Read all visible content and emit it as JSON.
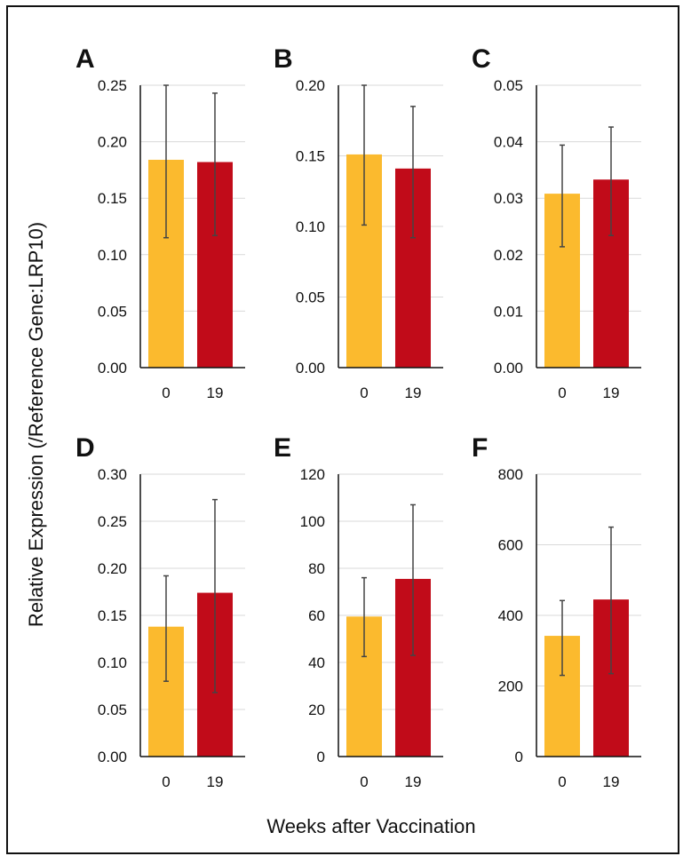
{
  "figure": {
    "ylabel": "Relative Expression (/Reference Gene:LRP10)",
    "xlabel": "Weeks after Vaccination",
    "colors": {
      "week0": "#FBBA2E",
      "week19": "#C10B19",
      "grid": "#D9D9D9",
      "axis": "#111111",
      "error": "#444444"
    }
  },
  "chart_data": [
    {
      "panel": "A",
      "type": "bar",
      "categories": [
        "0",
        "19"
      ],
      "values": [
        0.184,
        0.182
      ],
      "error_low": [
        0.115,
        0.117
      ],
      "error_high": [
        0.25,
        0.243
      ],
      "ylim": [
        0,
        0.25
      ],
      "yticks": [
        "0.00",
        "0.05",
        "0.10",
        "0.15",
        "0.20",
        "0.25"
      ],
      "grid": true
    },
    {
      "panel": "B",
      "type": "bar",
      "categories": [
        "0",
        "19"
      ],
      "values": [
        0.151,
        0.141
      ],
      "error_low": [
        0.101,
        0.092
      ],
      "error_high": [
        0.2,
        0.185
      ],
      "ylim": [
        0,
        0.2
      ],
      "yticks": [
        "0.00",
        "0.05",
        "0.10",
        "0.15",
        "0.20"
      ],
      "grid": true
    },
    {
      "panel": "C",
      "type": "bar",
      "categories": [
        "0",
        "19"
      ],
      "values": [
        0.0308,
        0.0333
      ],
      "error_low": [
        0.0214,
        0.0234
      ],
      "error_high": [
        0.0394,
        0.0426
      ],
      "ylim": [
        0,
        0.05
      ],
      "yticks": [
        "0.00",
        "0.01",
        "0.02",
        "0.03",
        "0.04",
        "0.05"
      ],
      "grid": true
    },
    {
      "panel": "D",
      "type": "bar",
      "categories": [
        "0",
        "19"
      ],
      "values": [
        0.138,
        0.174
      ],
      "error_low": [
        0.08,
        0.068
      ],
      "error_high": [
        0.192,
        0.273
      ],
      "ylim": [
        0,
        0.3
      ],
      "yticks": [
        "0.00",
        "0.05",
        "0.10",
        "0.15",
        "0.20",
        "0.25",
        "0.30"
      ],
      "grid": true
    },
    {
      "panel": "E",
      "type": "bar",
      "categories": [
        "0",
        "19"
      ],
      "values": [
        59.5,
        75.5
      ],
      "error_low": [
        42.5,
        43.0
      ],
      "error_high": [
        76.0,
        107.0
      ],
      "ylim": [
        0,
        120
      ],
      "yticks": [
        "0",
        "20",
        "40",
        "60",
        "80",
        "100",
        "120"
      ],
      "grid": true
    },
    {
      "panel": "F",
      "type": "bar",
      "categories": [
        "0",
        "19"
      ],
      "values": [
        342,
        445
      ],
      "error_low": [
        230,
        235
      ],
      "error_high": [
        442,
        650
      ],
      "ylim": [
        0,
        800
      ],
      "yticks": [
        "0",
        "200",
        "400",
        "600",
        "800"
      ],
      "grid": true
    }
  ]
}
